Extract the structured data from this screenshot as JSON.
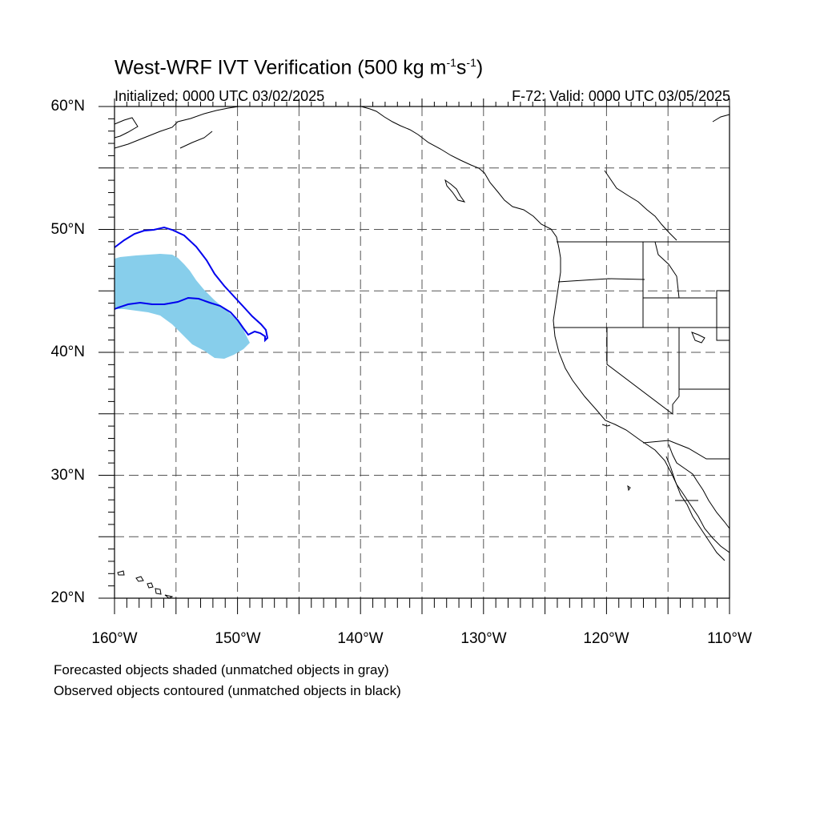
{
  "header": {
    "title_prefix": "West-WRF IVT Verification (500 kg m",
    "title_exp1": "-1",
    "title_mid": "s",
    "title_exp2": "-1",
    "title_suffix": ")",
    "initialized": "Initialized: 0000 UTC 03/02/2025",
    "valid": "F-72: Valid: 0000 UTC 03/05/2025"
  },
  "map": {
    "lon_range": [
      -160,
      -110
    ],
    "lat_range": [
      20,
      60
    ],
    "lat_labels": [
      {
        "text": "60°N",
        "lat": 60
      },
      {
        "text": "50°N",
        "lat": 50
      },
      {
        "text": "40°N",
        "lat": 40
      },
      {
        "text": "30°N",
        "lat": 30
      },
      {
        "text": "20°N",
        "lat": 20
      }
    ],
    "lon_labels": [
      {
        "text": "160°W",
        "lon": -160
      },
      {
        "text": "150°W",
        "lon": -150
      },
      {
        "text": "140°W",
        "lon": -140
      },
      {
        "text": "130°W",
        "lon": -130
      },
      {
        "text": "120°W",
        "lon": -120
      },
      {
        "text": "110°W",
        "lon": -110
      }
    ],
    "colors": {
      "forecast_fill": "#87ceeb",
      "observed_contour": "#0000ee",
      "coastline": "#000000",
      "grid": "#555555"
    }
  },
  "legend": {
    "line1": "Forecasted objects shaded (unmatched objects in gray)",
    "line2": "Observed objects contoured (unmatched objects in black)"
  }
}
